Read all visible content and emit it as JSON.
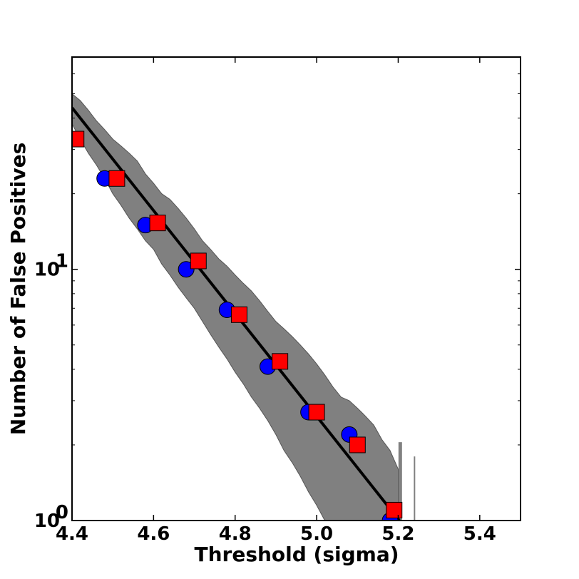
{
  "chart_data": {
    "type": "scatter",
    "title": "",
    "xlabel": "Threshold (sigma)",
    "ylabel": "Number of False Positives",
    "xlim": [
      4.4,
      5.5
    ],
    "ylim": [
      1,
      70
    ],
    "yscale": "log",
    "grid": false,
    "x_ticks": [
      4.4,
      4.6,
      4.8,
      5.0,
      5.2,
      5.4
    ],
    "x_tick_labels": [
      "4.4",
      "4.6",
      "4.8",
      "5.0",
      "5.2",
      "5.4"
    ],
    "y_ticks": [
      1,
      10
    ],
    "y_tick_labels": [
      {
        "base": "10",
        "exp": "0"
      },
      {
        "base": "10",
        "exp": "1"
      }
    ],
    "fit_line": {
      "x": [
        4.4,
        5.225
      ],
      "y": [
        44,
        0.9
      ],
      "color": "#000000"
    },
    "band": {
      "color": "#808080",
      "x": [
        4.4,
        4.42,
        4.44,
        4.46,
        4.48,
        4.5,
        4.52,
        4.54,
        4.56,
        4.58,
        4.6,
        4.62,
        4.64,
        4.66,
        4.68,
        4.7,
        4.72,
        4.74,
        4.76,
        4.78,
        4.8,
        4.82,
        4.84,
        4.86,
        4.88,
        4.9,
        4.92,
        4.94,
        4.96,
        4.98,
        5.0,
        5.02,
        5.04,
        5.06,
        5.08,
        5.1,
        5.12,
        5.14,
        5.16,
        5.18,
        5.2
      ],
      "upper": [
        50,
        47,
        43,
        39,
        36,
        33,
        31,
        29,
        27,
        24,
        22,
        20,
        19,
        17.5,
        16,
        14.5,
        13,
        12,
        11,
        10.3,
        9.5,
        8.8,
        8.2,
        7.5,
        6.8,
        6.2,
        5.8,
        5.4,
        5,
        4.6,
        4.2,
        3.8,
        3.4,
        3.1,
        3,
        2.8,
        2.6,
        2.4,
        2.1,
        1.9,
        1.6
      ],
      "lower": [
        38,
        33,
        29,
        26,
        23,
        20,
        18,
        16,
        14.5,
        13,
        12,
        10.5,
        9.5,
        8.5,
        7.7,
        7,
        6.2,
        5.5,
        4.9,
        4.4,
        3.9,
        3.5,
        3.1,
        2.8,
        2.5,
        2.2,
        1.9,
        1.7,
        1.5,
        1.3,
        1.15,
        1,
        0.9,
        0.8,
        0.75,
        0.7,
        0.65,
        0.6,
        0.55,
        0.5,
        0.45
      ]
    },
    "series": [
      {
        "marker": "circle",
        "color": "#0000ff",
        "x": [
          4.48,
          4.58,
          4.68,
          4.78,
          4.88,
          4.98,
          5.08,
          5.18
        ],
        "y": [
          23,
          15,
          10,
          6.9,
          4.1,
          2.7,
          2.2,
          1.0
        ]
      },
      {
        "marker": "square",
        "color": "#ff0000",
        "x": [
          4.41,
          4.51,
          4.61,
          4.71,
          4.81,
          4.91,
          5.0,
          5.1,
          5.19
        ],
        "y": [
          33,
          23,
          15.3,
          10.8,
          6.6,
          4.3,
          2.7,
          2.0,
          1.1
        ]
      }
    ],
    "spikes": [
      {
        "x": 5.205,
        "bottom": 1,
        "top": 2.05,
        "color": "#808080"
      },
      {
        "x": 5.24,
        "bottom": 1,
        "top": 1.8,
        "color": "#808080"
      }
    ]
  }
}
